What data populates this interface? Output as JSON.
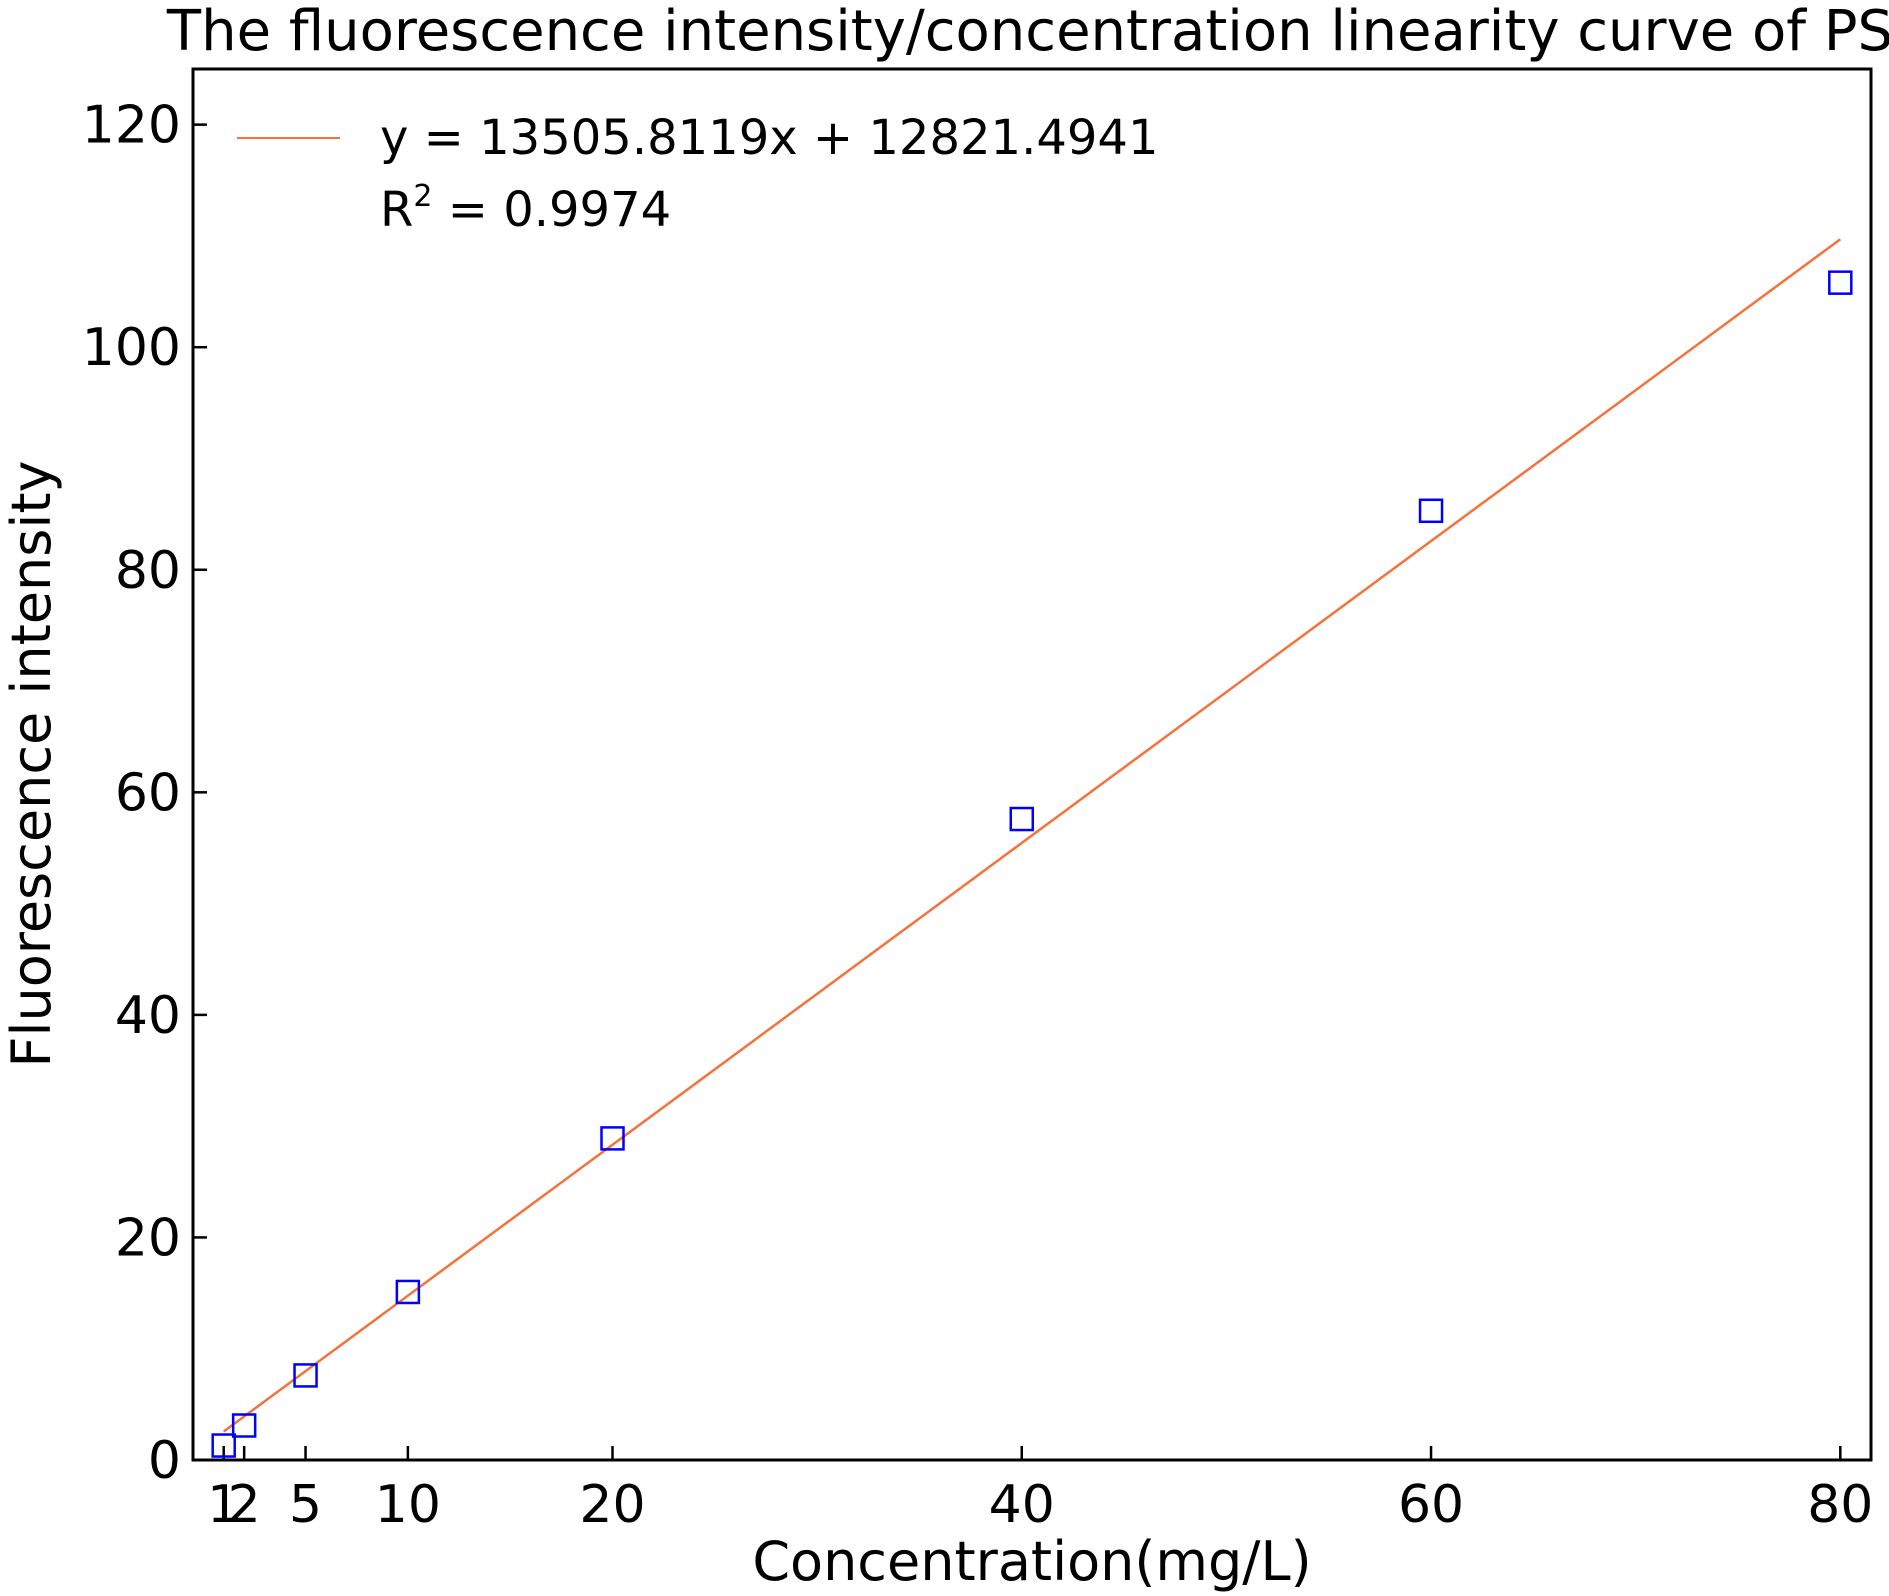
{
  "chart_data": {
    "type": "scatter",
    "title": "The fluorescence intensity/concentration linearity curve of PS",
    "xlabel": "Concentration(mg/L)",
    "ylabel": "Fluorescence intensity",
    "xlim": [
      -0.5,
      81.5
    ],
    "ylim": [
      0,
      125
    ],
    "xticks": [
      1,
      2,
      5,
      10,
      20,
      40,
      60,
      80
    ],
    "yticks": [
      0,
      20,
      40,
      60,
      80,
      100,
      120
    ],
    "grid": false,
    "legend_position": "top-left",
    "series": [
      {
        "type": "scatter",
        "marker": "open-square",
        "color": "#0000ff",
        "x": [
          1,
          2,
          5,
          10,
          20,
          40,
          60,
          80
        ],
        "y": [
          1.3,
          3.1,
          7.6,
          15.1,
          28.9,
          57.6,
          85.3,
          105.8
        ]
      },
      {
        "type": "line",
        "name": "y = 13505.8119x + 12821.4941",
        "color": "#f4733d",
        "x": [
          1,
          80
        ],
        "y": [
          2.56,
          109.7
        ]
      }
    ],
    "legend_r2_prefix": "R",
    "legend_r2_sup": "2",
    "legend_r2_suffix": " = 0.9974"
  }
}
